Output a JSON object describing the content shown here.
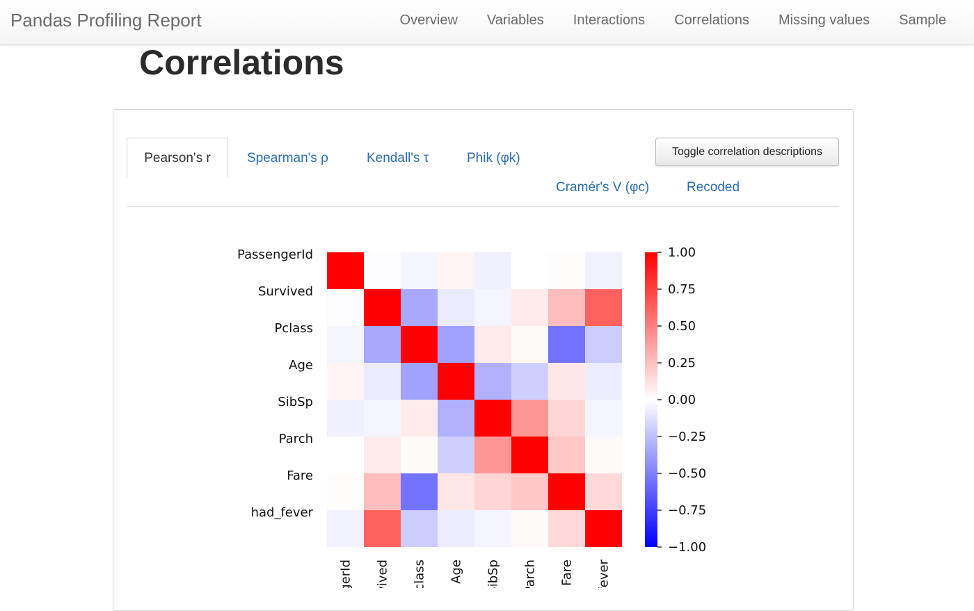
{
  "navbar": {
    "brand": "Pandas Profiling Report",
    "links": [
      "Overview",
      "Variables",
      "Interactions",
      "Correlations",
      "Missing values",
      "Sample"
    ]
  },
  "page": {
    "title": "Correlations"
  },
  "tabs": [
    {
      "label": "Pearson's r",
      "active": true
    },
    {
      "label": "Spearman's ρ",
      "active": false
    },
    {
      "label": "Kendall's τ",
      "active": false
    },
    {
      "label": "Phik (φk)",
      "active": false
    },
    {
      "label": "Cramér's V (φc)",
      "active": false
    },
    {
      "label": "Recoded",
      "active": false
    }
  ],
  "toggle_button": {
    "label": "Toggle correlation descriptions"
  },
  "chart_data": {
    "type": "heatmap",
    "title": "",
    "xlabel": "",
    "ylabel": "",
    "variables": [
      "PassengerId",
      "Survived",
      "Pclass",
      "Age",
      "SibSp",
      "Parch",
      "Fare",
      "had_fever"
    ],
    "x_tick_labels": [
      "assengerId",
      "Survived",
      "Pclass",
      "Age",
      "SibSp",
      "Parch",
      "Fare",
      "had_fever"
    ],
    "matrix": [
      [
        1.0,
        -0.01,
        -0.04,
        0.04,
        -0.06,
        -0.0,
        0.01,
        -0.05
      ],
      [
        -0.01,
        1.0,
        -0.34,
        -0.08,
        -0.04,
        0.08,
        0.26,
        0.62
      ],
      [
        -0.04,
        -0.34,
        1.0,
        -0.37,
        0.08,
        0.02,
        -0.55,
        -0.2
      ],
      [
        0.04,
        -0.08,
        -0.37,
        1.0,
        -0.31,
        -0.19,
        0.1,
        -0.07
      ],
      [
        -0.06,
        -0.04,
        0.08,
        -0.31,
        1.0,
        0.41,
        0.16,
        -0.04
      ],
      [
        -0.0,
        0.08,
        0.02,
        -0.19,
        0.41,
        1.0,
        0.22,
        0.02
      ],
      [
        0.01,
        0.26,
        -0.55,
        0.1,
        0.16,
        0.22,
        1.0,
        0.15
      ],
      [
        -0.05,
        0.62,
        -0.2,
        -0.07,
        -0.04,
        0.02,
        0.15,
        1.0
      ]
    ],
    "colorbar": {
      "min": -1.0,
      "max": 1.0,
      "ticks": [
        1.0,
        0.75,
        0.5,
        0.25,
        0.0,
        -0.25,
        -0.5,
        -0.75,
        -1.0
      ],
      "tick_labels": [
        "1.00",
        "0.75",
        "0.50",
        "0.25",
        "0.00",
        "−0.25",
        "−0.50",
        "−0.75",
        "−1.00"
      ]
    },
    "colors": {
      "negative": "#0000ff",
      "zero": "#ffffff",
      "positive": "#ff0000"
    },
    "grid": false,
    "legend": "colorbar-right"
  }
}
